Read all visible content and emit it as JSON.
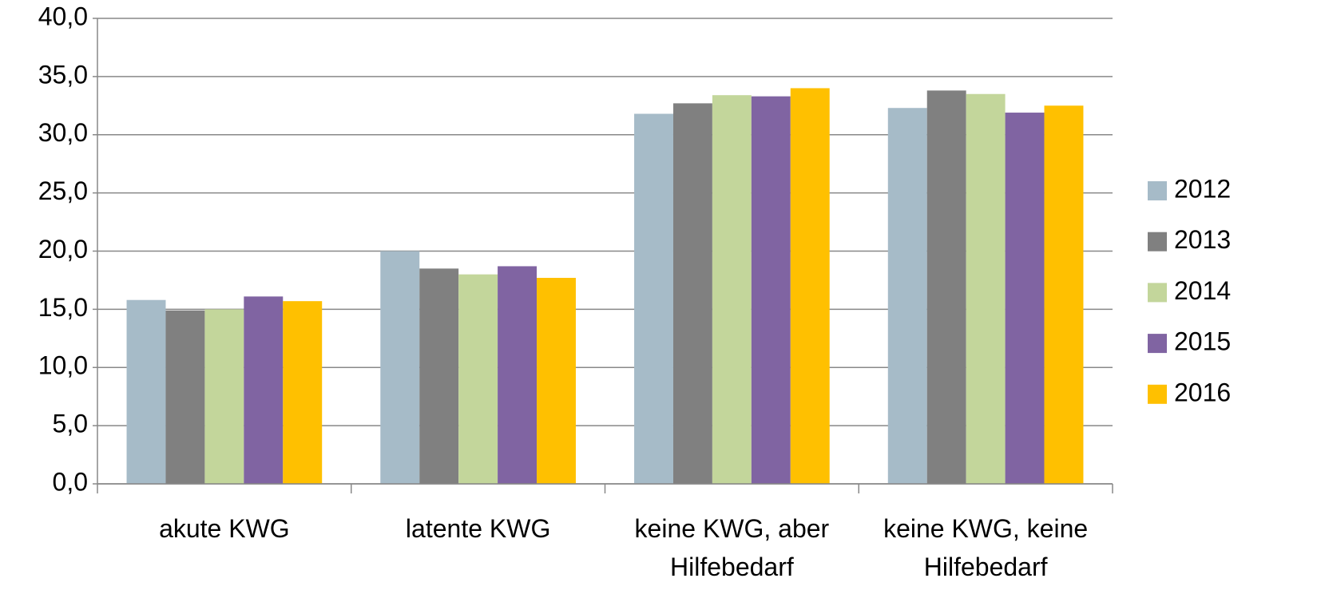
{
  "chart_data": {
    "type": "bar",
    "categories": [
      "akute KWG",
      "latente KWG",
      "keine KWG, aber Hilfebedarf",
      "keine KWG, keine Hilfebedarf"
    ],
    "series": [
      {
        "name": "2012",
        "color": "#a6bbc8",
        "values": [
          15.8,
          20.0,
          31.8,
          32.3
        ]
      },
      {
        "name": "2013",
        "color": "#808080",
        "values": [
          14.9,
          18.5,
          32.7,
          33.8
        ]
      },
      {
        "name": "2014",
        "color": "#c3d69b",
        "values": [
          15.0,
          18.0,
          33.4,
          33.5
        ]
      },
      {
        "name": "2015",
        "color": "#8064a2",
        "values": [
          16.1,
          18.7,
          33.3,
          31.9
        ]
      },
      {
        "name": "2016",
        "color": "#ffc000",
        "values": [
          15.7,
          17.7,
          34.0,
          32.5
        ]
      }
    ],
    "ylim": [
      0,
      40
    ],
    "yticks": [
      {
        "value": 0,
        "label": "0,0"
      },
      {
        "value": 5,
        "label": "5,0"
      },
      {
        "value": 10,
        "label": "10,0"
      },
      {
        "value": 15,
        "label": "15,0"
      },
      {
        "value": 20,
        "label": "20,0"
      },
      {
        "value": 25,
        "label": "25,0"
      },
      {
        "value": 30,
        "label": "30,0"
      },
      {
        "value": 35,
        "label": "35,0"
      },
      {
        "value": 40,
        "label": "40,0"
      }
    ],
    "grid": true,
    "legend": "right"
  }
}
